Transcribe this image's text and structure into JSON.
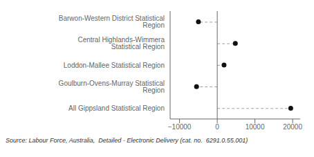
{
  "chart_data": {
    "type": "lollipop",
    "orientation": "horizontal",
    "categories": [
      "Barwon-Western District Statistical Region",
      "Central Highlands-Wimmera Statistical Region",
      "Loddon-Mallee Statistical Region",
      "Goulburn-Ovens-Murray Statistical Region",
      "All Gippsland Statistical Region"
    ],
    "values": [
      -5000,
      4800,
      1800,
      -5500,
      19500
    ],
    "baseline": 0,
    "xlim": [
      -12500,
      22000
    ],
    "xticks": [
      {
        "value": -10000,
        "label": "−10000"
      },
      0,
      10000,
      20000
    ],
    "color": "#111111",
    "line_style": "dashed",
    "marker": "circle",
    "grid": false,
    "annotations": [
      "Source: Labour Force, Australia,  Detailed - Electronic Delivery (cat. no.  6291.0.55.001)"
    ]
  }
}
